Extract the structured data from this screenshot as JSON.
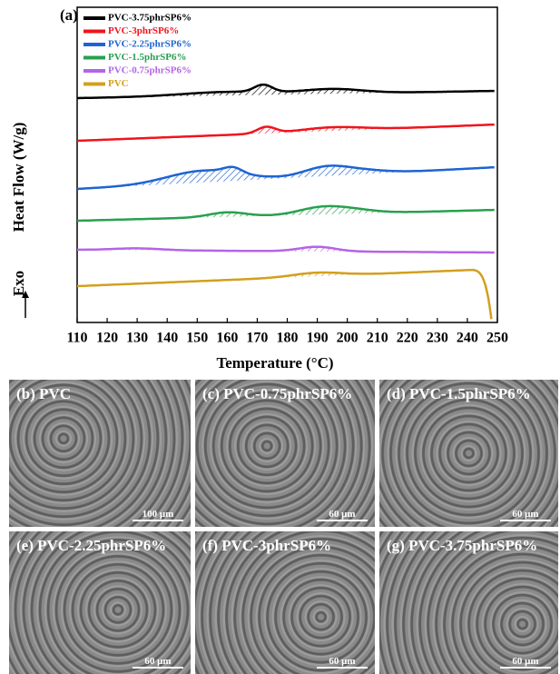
{
  "chart_data": {
    "type": "line",
    "panel_label": "(a)",
    "ylabel": "Heat Flow (W/g)",
    "exo_label": "Exo",
    "xlabel": "Temperature (°C)",
    "xlim": [
      110,
      250
    ],
    "xticks": [
      110,
      120,
      130,
      140,
      150,
      160,
      170,
      180,
      190,
      200,
      210,
      220,
      230,
      240,
      250
    ],
    "series": [
      {
        "name": "PVC-3.75phrSP6%",
        "color": "#000000"
      },
      {
        "name": "PVC-3phrSP6%",
        "color": "#f0141e"
      },
      {
        "name": "PVC-2.25phrSP6%",
        "color": "#1e64d2"
      },
      {
        "name": "PVC-1.5phrSP6%",
        "color": "#28a050"
      },
      {
        "name": "PVC-0.75phrSP6%",
        "color": "#b464e6"
      },
      {
        "name": "PVC",
        "color": "#d2a01e"
      }
    ]
  },
  "micrographs": [
    {
      "label": "(b) PVC",
      "scale_bar": "100 μm"
    },
    {
      "label": "(c) PVC-0.75phrSP6%",
      "scale_bar": "60 μm"
    },
    {
      "label": "(d) PVC-1.5phrSP6%",
      "scale_bar": "60 μm"
    },
    {
      "label": "(e) PVC-2.25phrSP6%",
      "scale_bar": "60 μm"
    },
    {
      "label": "(f) PVC-3phrSP6%",
      "scale_bar": "60 μm"
    },
    {
      "label": "(g) PVC-3.75phrSP6%",
      "scale_bar": "60 μm"
    }
  ]
}
